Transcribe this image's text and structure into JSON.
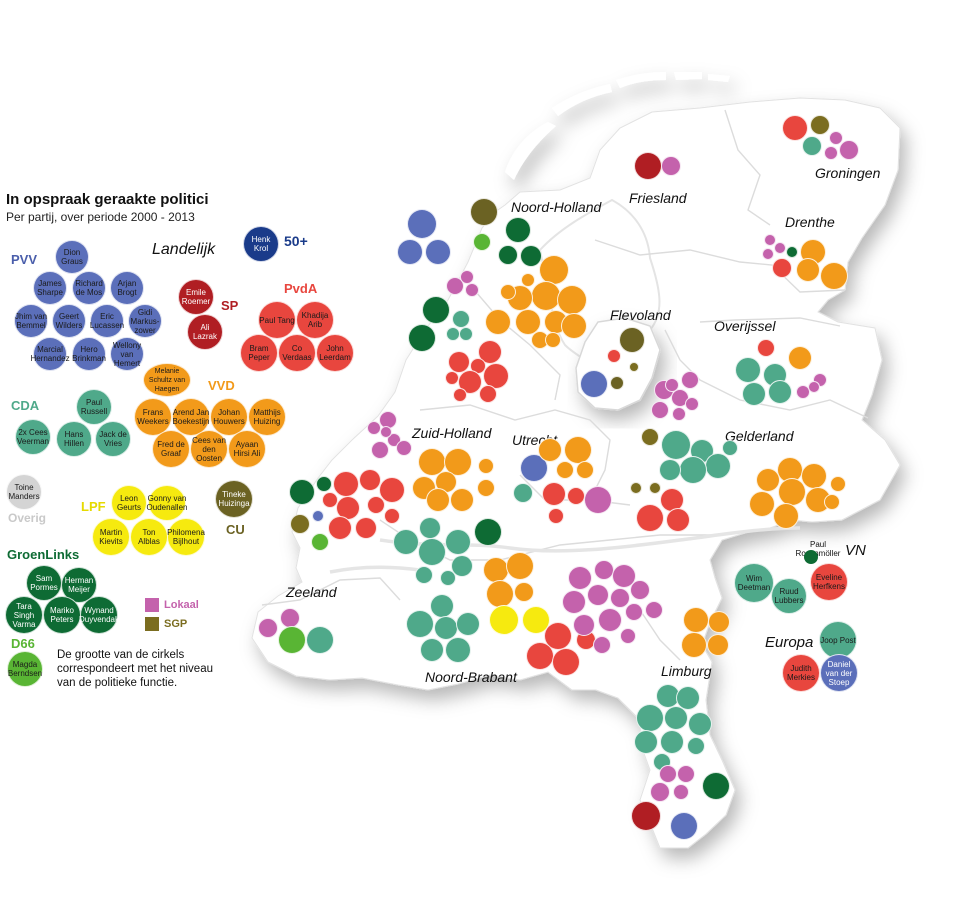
{
  "title": "In opspraak geraakte politici",
  "subtitle": "Per partij, over periode 2000 - 2013",
  "colors": {
    "PVV": "#5b6fba",
    "SP": "#b01e23",
    "PvdA": "#e8463e",
    "VVD": "#f29a1a",
    "CDA": "#4fa98a",
    "LPF": "#f6ea0f",
    "GroenLinks": "#0e6b34",
    "D66": "#59b534",
    "CU": "#6b6223",
    "Lokaal": "#c462ac",
    "SGP": "#7b6d20",
    "Overig": "#d4d4d4",
    "50plus": "#1a3b8a"
  },
  "headings": {
    "landelijk": "Landelijk",
    "fifty_plus": "50+",
    "pvv": "PVV",
    "sp": "SP",
    "pvda": "PvdA",
    "vvd": "VVD",
    "cda": "CDA",
    "overig": "Overig",
    "lpf": "LPF",
    "cu": "CU",
    "groenlinks": "GroenLinks",
    "d66": "D66",
    "vn": "VN",
    "europa": "Europa"
  },
  "legend": {
    "lokaal": "Lokaal",
    "sgp": "SGP"
  },
  "note": "De grootte van de cirkels correspondeert met het niveau van de politieke functie.",
  "regions": {
    "noord_holland": "Noord-Holland",
    "friesland": "Friesland",
    "groningen": "Groningen",
    "drenthe": "Drenthe",
    "flevoland": "Flevoland",
    "overijssel": "Overijssel",
    "gelderland": "Gelderland",
    "utrecht": "Utrecht",
    "zuid_holland": "Zuid-Holland",
    "zeeland": "Zeeland",
    "noord_brabant": "Noord-Brabant",
    "limburg": "Limburg"
  },
  "national_politicians": [
    {
      "party": "PVV",
      "name": "Dion Graus"
    },
    {
      "party": "PVV",
      "name": "James Sharpe"
    },
    {
      "party": "PVV",
      "name": "Richard de Mos"
    },
    {
      "party": "PVV",
      "name": "Arjan Brogt"
    },
    {
      "party": "PVV",
      "name": "Jhim van Bemmel"
    },
    {
      "party": "PVV",
      "name": "Geert Wilders"
    },
    {
      "party": "PVV",
      "name": "Eric Lucassen"
    },
    {
      "party": "PVV",
      "name": "Gidi Markus-zower"
    },
    {
      "party": "PVV",
      "name": "Marcial Hernandez"
    },
    {
      "party": "PVV",
      "name": "Hero Brinkman"
    },
    {
      "party": "PVV",
      "name": "Wellony van Hemert"
    },
    {
      "party": "50plus",
      "name": "Henk Krol"
    },
    {
      "party": "SP",
      "name": "Emile Roemer"
    },
    {
      "party": "SP",
      "name": "Ali Lazrak"
    },
    {
      "party": "PvdA",
      "name": "Paul Tang"
    },
    {
      "party": "PvdA",
      "name": "Khadija Arib"
    },
    {
      "party": "PvdA",
      "name": "Bram Peper"
    },
    {
      "party": "PvdA",
      "name": "Co Verdaas"
    },
    {
      "party": "PvdA",
      "name": "John Leerdam"
    },
    {
      "party": "VVD",
      "name": "Melanie Schultz van Haegen"
    },
    {
      "party": "VVD",
      "name": "Frans Weekers"
    },
    {
      "party": "VVD",
      "name": "Arend Jan Boekestijn"
    },
    {
      "party": "VVD",
      "name": "Johan Houwers"
    },
    {
      "party": "VVD",
      "name": "Matthijs Huizing"
    },
    {
      "party": "VVD",
      "name": "Fred de Graaf"
    },
    {
      "party": "VVD",
      "name": "Cees van den Oosten"
    },
    {
      "party": "VVD",
      "name": "Ayaan Hirsi Ali"
    },
    {
      "party": "CDA",
      "name": "Paul Russell"
    },
    {
      "party": "CDA",
      "name": "2x Cees Veerman"
    },
    {
      "party": "CDA",
      "name": "Hans Hillen"
    },
    {
      "party": "CDA",
      "name": "Jack de Vries"
    },
    {
      "party": "Overig",
      "name": "Toine Manders"
    },
    {
      "party": "LPF",
      "name": "Leon Geurts"
    },
    {
      "party": "LPF",
      "name": "Gonny van Oudenallen"
    },
    {
      "party": "LPF",
      "name": "Martin Kievits"
    },
    {
      "party": "LPF",
      "name": "Ton Alblas"
    },
    {
      "party": "LPF",
      "name": "Philomena Bijlhout"
    },
    {
      "party": "CU",
      "name": "Tineke Huizinga"
    },
    {
      "party": "GroenLinks",
      "name": "Sam Pormes"
    },
    {
      "party": "GroenLinks",
      "name": "Herman Meijer"
    },
    {
      "party": "GroenLinks",
      "name": "Tara Singh Varma"
    },
    {
      "party": "GroenLinks",
      "name": "Mariko Peters"
    },
    {
      "party": "GroenLinks",
      "name": "Wynand Duyvendak"
    },
    {
      "party": "D66",
      "name": "Magda Berndsen"
    }
  ],
  "international_politicians": [
    {
      "party": "GroenLinks",
      "name": "Paul Rosenmöller",
      "body": "VN"
    },
    {
      "party": "CDA",
      "name": "Wim Deetman",
      "body": "VN"
    },
    {
      "party": "CDA",
      "name": "Ruud Lubbers",
      "body": "VN"
    },
    {
      "party": "PvdA",
      "name": "Eveline Herfkens",
      "body": "VN"
    },
    {
      "party": "CDA",
      "name": "Joop Post",
      "body": "Europa"
    },
    {
      "party": "PvdA",
      "name": "Judith Merkies",
      "body": "Europa"
    },
    {
      "party": "PVV",
      "name": "Daniel van der Stoep",
      "body": "Europa"
    }
  ]
}
